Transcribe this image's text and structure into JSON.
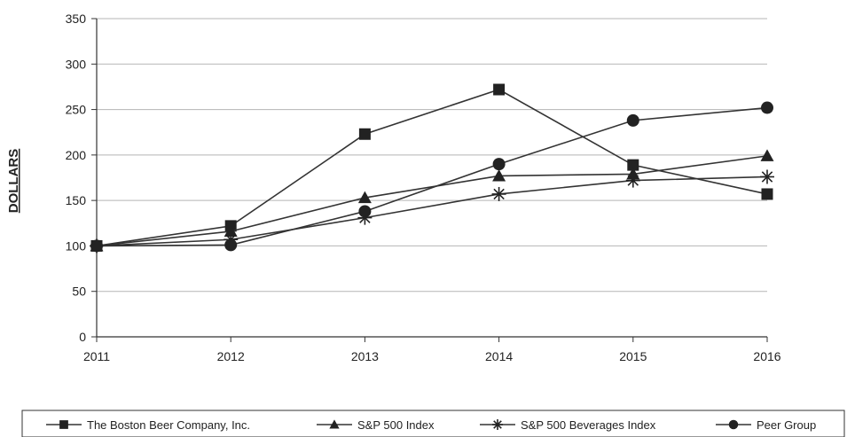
{
  "chart_data": {
    "type": "line",
    "title": "",
    "xlabel": "",
    "ylabel": "DOLLARS",
    "x": [
      "2011",
      "2012",
      "2013",
      "2014",
      "2015",
      "2016"
    ],
    "ylim": [
      0,
      350
    ],
    "yticks": [
      0,
      50,
      100,
      150,
      200,
      250,
      300,
      350
    ],
    "grid": "horizontal",
    "legend_position": "bottom",
    "series": [
      {
        "name": "The Boston Beer Company, Inc.",
        "marker": "square",
        "values": [
          100,
          122,
          223,
          272,
          189,
          157
        ]
      },
      {
        "name": "S&P 500 Index",
        "marker": "triangle",
        "values": [
          100,
          116,
          153,
          177,
          179,
          199
        ]
      },
      {
        "name": "S&P 500 Beverages Index",
        "marker": "asterisk",
        "values": [
          100,
          107,
          131,
          157,
          172,
          176
        ]
      },
      {
        "name": "Peer Group",
        "marker": "circle",
        "values": [
          100,
          101,
          138,
          190,
          238,
          252
        ]
      }
    ]
  }
}
